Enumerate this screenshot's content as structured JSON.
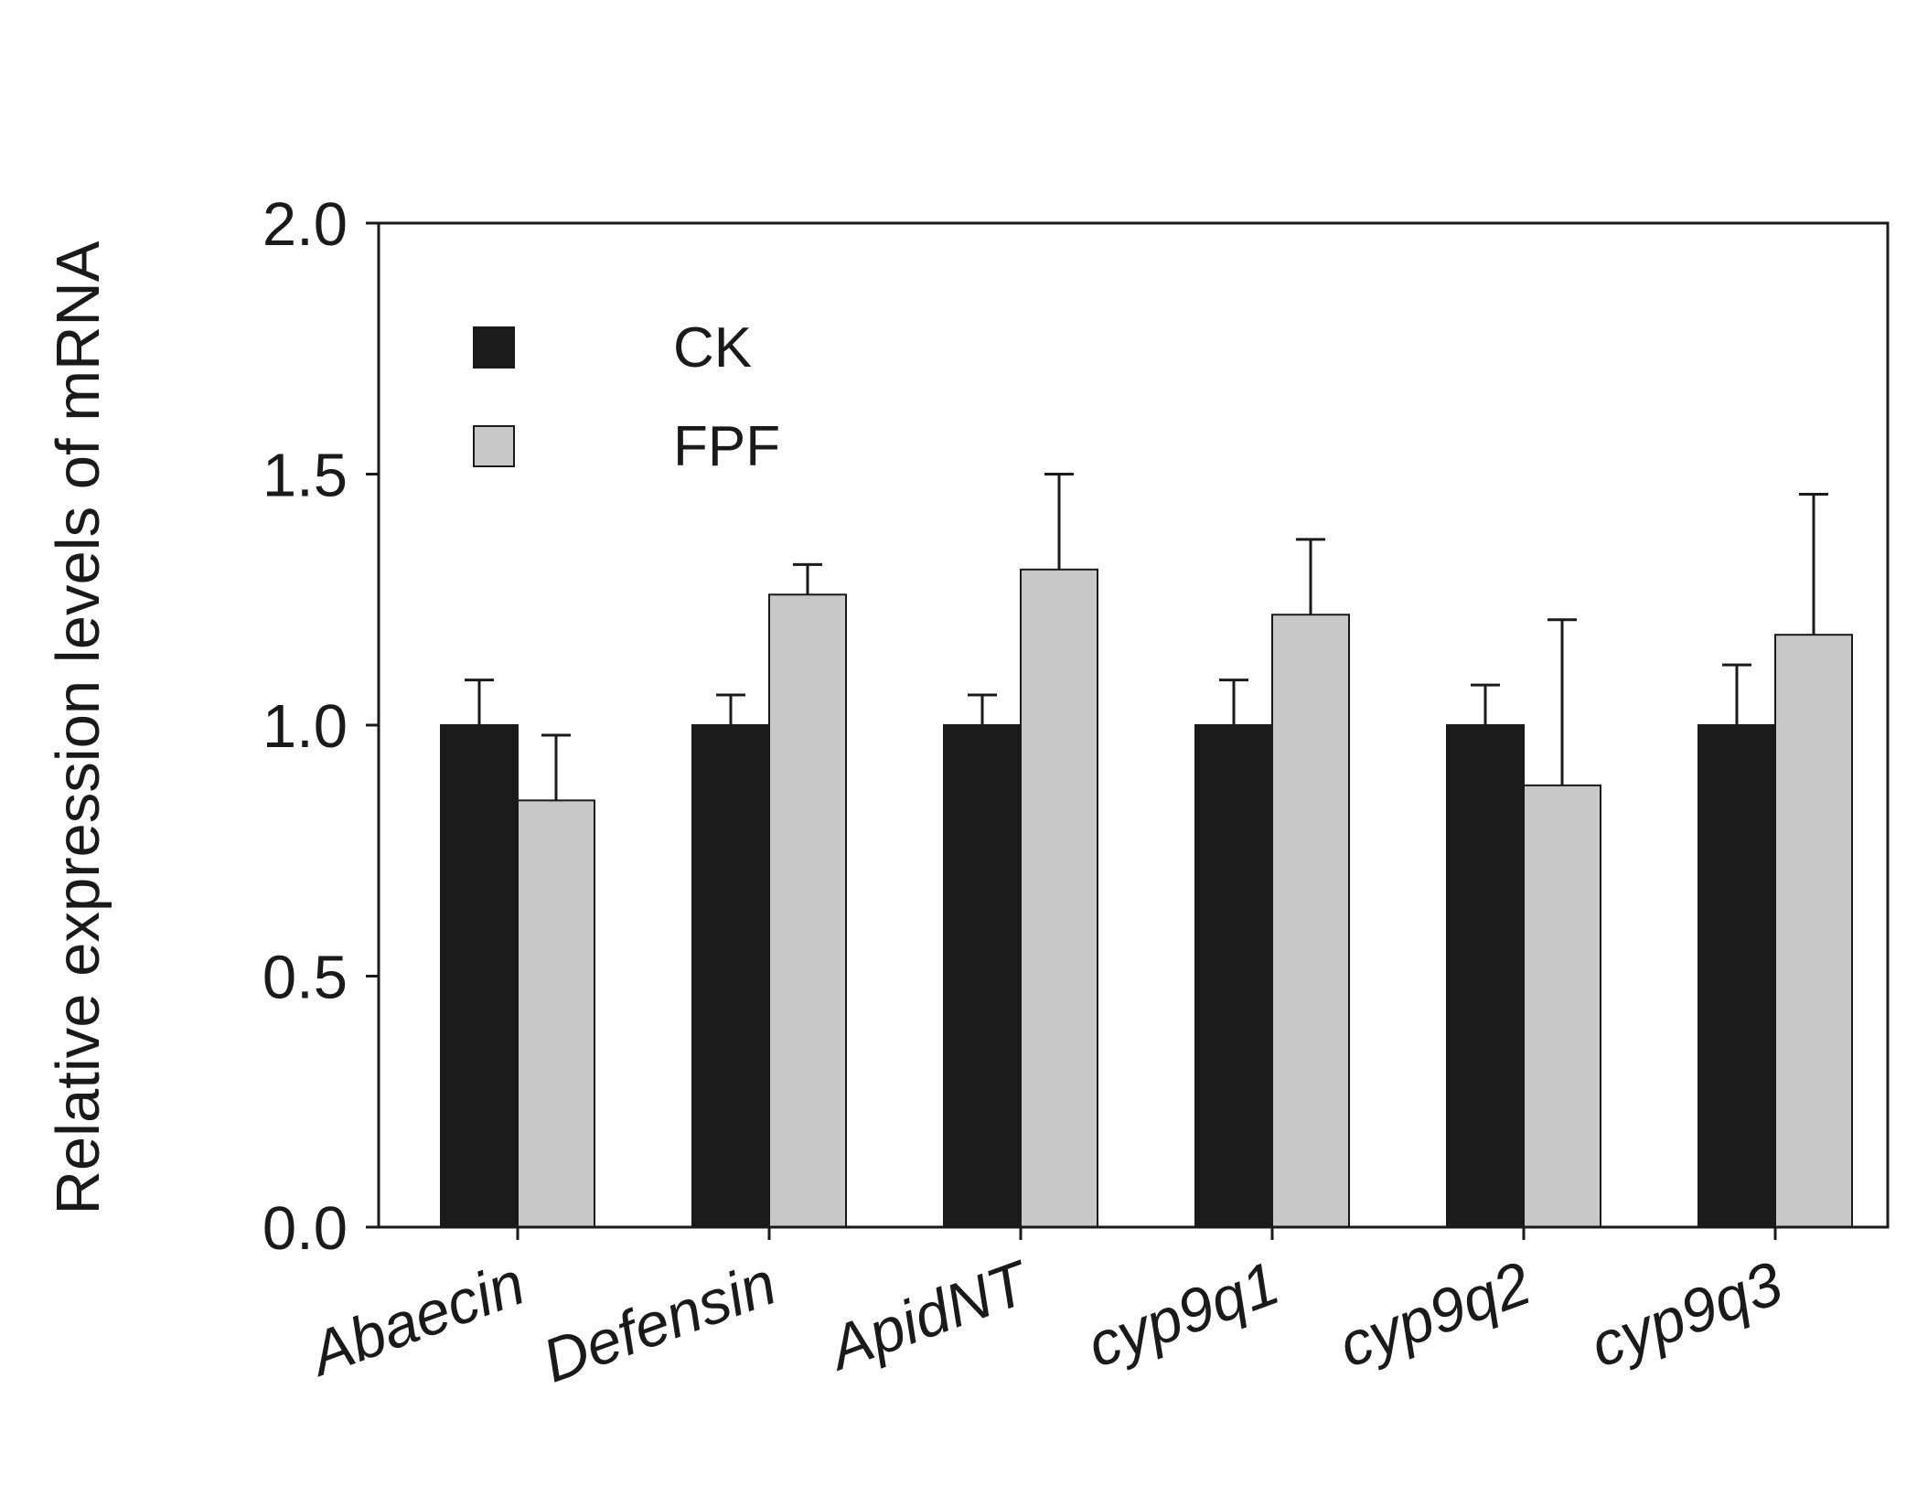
{
  "chart_data": {
    "type": "bar",
    "title": "",
    "xlabel": "",
    "ylabel": "Relative expression levels of mRNA",
    "categories": [
      "Abaecin",
      "Defensin",
      "ApidNT",
      "cyp9q1",
      "cyp9q2",
      "cyp9q3"
    ],
    "series": [
      {
        "name": "CK",
        "color": "#1a1a1a",
        "values": [
          1.0,
          1.0,
          1.0,
          1.0,
          1.0,
          1.0
        ],
        "errors": [
          0.09,
          0.06,
          0.06,
          0.09,
          0.08,
          0.12
        ]
      },
      {
        "name": "FPF",
        "color": "#c8c8c8",
        "values": [
          0.85,
          1.26,
          1.31,
          1.22,
          0.88,
          1.18
        ],
        "errors": [
          0.13,
          0.06,
          0.19,
          0.15,
          0.33,
          0.28
        ]
      }
    ],
    "ylim": [
      0,
      2.0
    ],
    "yticks": [
      "0.0",
      "0.5",
      "1.0",
      "1.5",
      "2.0"
    ],
    "grid": false,
    "legend_position": "top-left"
  }
}
